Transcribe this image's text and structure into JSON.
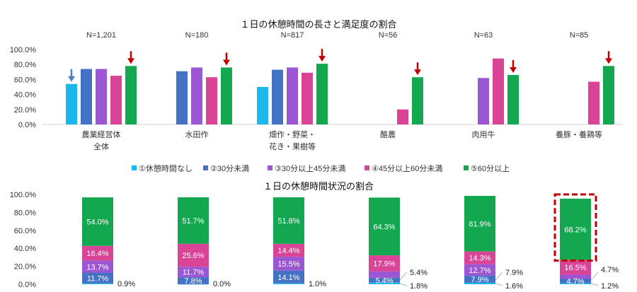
{
  "chart_data": [
    {
      "type": "bar",
      "title": "１日の休憩時間の長さと満足度の割合",
      "ylim": [
        0,
        100
      ],
      "y_ticks": [
        "0.0%",
        "20.0%",
        "40.0%",
        "60.0%",
        "80.0%",
        "100.0%"
      ],
      "grid": false,
      "groups": [
        {
          "label": "農業経営体\n全体",
          "n": "N=1,201",
          "values": [
            54,
            74,
            74,
            65,
            78
          ],
          "highlight": [
            0,
            4
          ]
        },
        {
          "label": "水田作",
          "n": "N=180",
          "values": [
            null,
            71,
            76,
            63,
            76
          ],
          "highlight": [
            4
          ]
        },
        {
          "label": "畑作・野菜・\n花き・果樹等",
          "n": "N=817",
          "values": [
            50,
            73,
            76,
            69,
            81
          ],
          "highlight": [
            4
          ]
        },
        {
          "label": "酪農",
          "n": "N=56",
          "values": [
            null,
            null,
            null,
            20,
            63
          ],
          "highlight": [
            4
          ]
        },
        {
          "label": "肉用牛",
          "n": "N=63",
          "values": [
            null,
            null,
            62,
            88,
            66
          ],
          "highlight": [
            4
          ]
        },
        {
          "label": "養豚・養鶏等",
          "n": "N=85",
          "values": [
            null,
            null,
            null,
            57,
            78
          ],
          "highlight": [
            4
          ]
        }
      ]
    },
    {
      "type": "bar",
      "stacked": true,
      "title": "１日の休憩時間状況の割合",
      "ylim": [
        0,
        100
      ],
      "y_ticks": [
        "0.0%",
        "20.0%",
        "40.0%",
        "60.0%",
        "80.0%",
        "100.0%"
      ],
      "grid": false,
      "stacks": [
        {
          "values": [
            0.9,
            11.7,
            13.7,
            16.4,
            54.0
          ],
          "labels": [
            "0.9%",
            "11.7%",
            "13.7%",
            "16.4%",
            "54.0%"
          ]
        },
        {
          "values": [
            0.0,
            7.8,
            11.7,
            25.6,
            51.7
          ],
          "labels": [
            "0.0%",
            "7.8%",
            "11.7%",
            "25.6%",
            "51.7%"
          ]
        },
        {
          "values": [
            1.0,
            14.1,
            15.5,
            14.4,
            51.8
          ],
          "labels": [
            "1.0%",
            "14.1%",
            "15.5%",
            "14.4%",
            "51.8%"
          ]
        },
        {
          "values": [
            1.8,
            5.4,
            7.1,
            17.9,
            64.3
          ],
          "labels": [
            "1.8%",
            "5.4%",
            "7.1%",
            "17.9%",
            "64.3%"
          ]
        },
        {
          "values": [
            1.6,
            7.9,
            12.7,
            14.3,
            61.9
          ],
          "labels": [
            "1.6%",
            "7.9%",
            "12.7%",
            "14.3%",
            "61.9%"
          ]
        },
        {
          "values": [
            1.2,
            4.7,
            4.7,
            16.5,
            68.2
          ],
          "labels": [
            "1.2%",
            "4.7%",
            "4.7%",
            "16.5%",
            "68.2%"
          ],
          "highlight": true
        }
      ]
    }
  ],
  "legend": [
    {
      "label": "①休憩時間なし",
      "color": "#1ab8ec"
    },
    {
      "label": "②30分未満",
      "color": "#4472c4"
    },
    {
      "label": "③30分以上45分未満",
      "color": "#9b57d3"
    },
    {
      "label": "④45分以上60分未満",
      "color": "#d94497"
    },
    {
      "label": "⑤60分以上",
      "color": "#13a84f"
    }
  ],
  "colors": {
    "arrow_red": "#c00000",
    "arrow_blue": "#4a7cc8",
    "highlight_box": "#c00000"
  }
}
